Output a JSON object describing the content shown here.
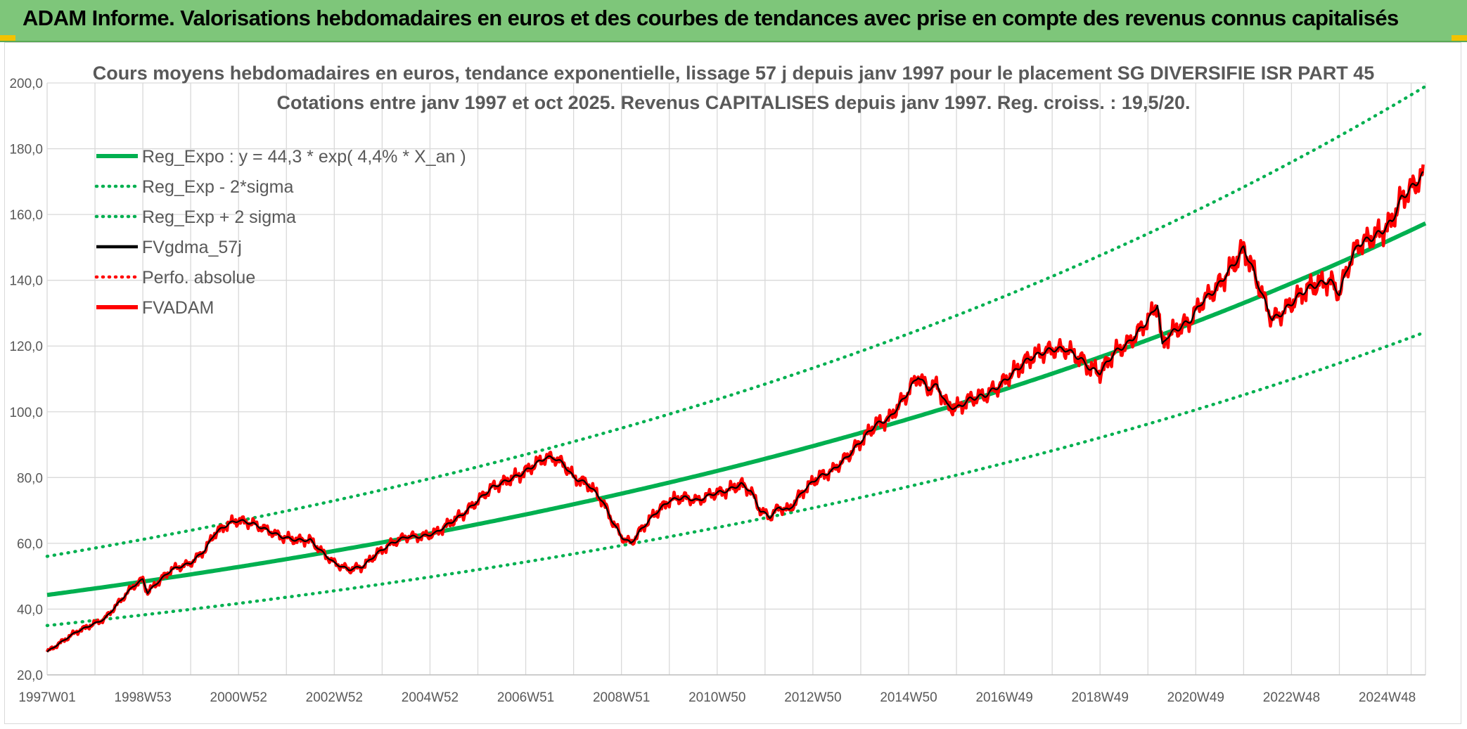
{
  "banner": {
    "title": "ADAM Informe. Valorisations hebdomadaires en euros et des courbes de tendances avec prise en compte des revenus connus capitalisés"
  },
  "colors": {
    "banner_bg": "#7ec67a",
    "trend": "#00b050",
    "smooth": "#000000",
    "price": "#ff0000",
    "grid": "#d9d9d9",
    "text": "#595959"
  },
  "chart_data": {
    "type": "line",
    "title_line1": "Cours moyens hebdomadaires en euros, tendance exponentielle, lissage 57 j depuis janv 1997 pour le placement SG DIVERSIFIE ISR PART 45",
    "title_line2": "Cotations entre janv 1997 et oct 2025. Revenus CAPITALISES depuis janv 1997. Reg. croiss. : 19,5/20.",
    "ylim": [
      20,
      200
    ],
    "y_ticks": [
      "20,0",
      "40,0",
      "60,0",
      "80,0",
      "100,0",
      "120,0",
      "140,0",
      "160,0",
      "180,0",
      "200,0"
    ],
    "x_range_years": [
      1997.0,
      2025.8
    ],
    "x_ticks": [
      {
        "label": "1997W01",
        "year": 1997.0
      },
      {
        "label": "1998W53",
        "year": 1999.0
      },
      {
        "label": "2000W52",
        "year": 2001.0
      },
      {
        "label": "2002W52",
        "year": 2003.0
      },
      {
        "label": "2004W52",
        "year": 2005.0
      },
      {
        "label": "2006W51",
        "year": 2007.0
      },
      {
        "label": "2008W51",
        "year": 2009.0
      },
      {
        "label": "2010W50",
        "year": 2011.0
      },
      {
        "label": "2012W50",
        "year": 2013.0
      },
      {
        "label": "2014W50",
        "year": 2015.0
      },
      {
        "label": "2016W49",
        "year": 2017.0
      },
      {
        "label": "2018W49",
        "year": 2019.0
      },
      {
        "label": "2020W49",
        "year": 2021.0
      },
      {
        "label": "2022W48",
        "year": 2023.0
      },
      {
        "label": "2024W48",
        "year": 2025.0
      }
    ],
    "legend": [
      {
        "name": "Reg_Expo : y = 44,3 * exp( 4,4% *  X_an )",
        "style": "solid-thick",
        "color": "#00b050"
      },
      {
        "name": "Reg_Exp - 2*sigma",
        "style": "dotted",
        "color": "#00b050"
      },
      {
        "name": "Reg_Exp + 2 sigma",
        "style": "dotted",
        "color": "#00b050"
      },
      {
        "name": "FVgdma_57j",
        "style": "solid",
        "color": "#000000"
      },
      {
        "name": "Perfo. absolue",
        "style": "dotted",
        "color": "#ff0000"
      },
      {
        "name": "FVADAM",
        "style": "solid-thick",
        "color": "#ff0000"
      }
    ],
    "regression": {
      "a": 44.3,
      "rate": 0.044,
      "lower_factor": 0.79,
      "upper_factor": 1.265
    },
    "series": [
      {
        "name": "FVADAM",
        "points": [
          [
            1997.0,
            27
          ],
          [
            1997.3,
            30
          ],
          [
            1997.6,
            33
          ],
          [
            1997.9,
            35
          ],
          [
            1998.2,
            37
          ],
          [
            1998.5,
            42
          ],
          [
            1998.8,
            47
          ],
          [
            1999.0,
            49
          ],
          [
            1999.1,
            45
          ],
          [
            1999.3,
            48
          ],
          [
            1999.6,
            52
          ],
          [
            2000.0,
            54
          ],
          [
            2000.3,
            58
          ],
          [
            2000.5,
            63
          ],
          [
            2000.8,
            66
          ],
          [
            2001.0,
            67
          ],
          [
            2001.3,
            66
          ],
          [
            2001.6,
            64
          ],
          [
            2001.9,
            62
          ],
          [
            2002.2,
            61
          ],
          [
            2002.5,
            61
          ],
          [
            2002.7,
            58
          ],
          [
            2003.0,
            54
          ],
          [
            2003.3,
            52
          ],
          [
            2003.6,
            53
          ],
          [
            2003.9,
            57
          ],
          [
            2004.2,
            60
          ],
          [
            2004.5,
            62
          ],
          [
            2004.8,
            62
          ],
          [
            2005.1,
            63
          ],
          [
            2005.4,
            66
          ],
          [
            2005.7,
            69
          ],
          [
            2006.0,
            73
          ],
          [
            2006.3,
            77
          ],
          [
            2006.6,
            79
          ],
          [
            2006.9,
            81
          ],
          [
            2007.2,
            84
          ],
          [
            2007.4,
            86
          ],
          [
            2007.6,
            86
          ],
          [
            2007.8,
            84
          ],
          [
            2008.0,
            80
          ],
          [
            2008.3,
            78
          ],
          [
            2008.6,
            73
          ],
          [
            2008.8,
            67
          ],
          [
            2009.0,
            62
          ],
          [
            2009.2,
            60
          ],
          [
            2009.4,
            64
          ],
          [
            2009.7,
            69
          ],
          [
            2010.0,
            73
          ],
          [
            2010.3,
            74
          ],
          [
            2010.6,
            73
          ],
          [
            2010.9,
            75
          ],
          [
            2011.2,
            76
          ],
          [
            2011.5,
            78
          ],
          [
            2011.7,
            76
          ],
          [
            2011.9,
            70
          ],
          [
            2012.1,
            68
          ],
          [
            2012.3,
            71
          ],
          [
            2012.5,
            70
          ],
          [
            2012.8,
            76
          ],
          [
            2013.1,
            80
          ],
          [
            2013.4,
            82
          ],
          [
            2013.7,
            86
          ],
          [
            2014.0,
            91
          ],
          [
            2014.3,
            96
          ],
          [
            2014.6,
            98
          ],
          [
            2014.9,
            104
          ],
          [
            2015.2,
            111
          ],
          [
            2015.4,
            107
          ],
          [
            2015.6,
            108
          ],
          [
            2015.8,
            102
          ],
          [
            2016.0,
            101
          ],
          [
            2016.3,
            104
          ],
          [
            2016.6,
            105
          ],
          [
            2016.9,
            108
          ],
          [
            2017.2,
            112
          ],
          [
            2017.5,
            116
          ],
          [
            2017.8,
            118
          ],
          [
            2018.0,
            119
          ],
          [
            2018.3,
            119
          ],
          [
            2018.6,
            116
          ],
          [
            2018.8,
            113
          ],
          [
            2019.0,
            112
          ],
          [
            2019.3,
            118
          ],
          [
            2019.6,
            121
          ],
          [
            2019.9,
            126
          ],
          [
            2020.1,
            130
          ],
          [
            2020.2,
            133
          ],
          [
            2020.3,
            120
          ],
          [
            2020.4,
            123
          ],
          [
            2020.6,
            125
          ],
          [
            2020.9,
            128
          ],
          [
            2021.1,
            133
          ],
          [
            2021.4,
            137
          ],
          [
            2021.7,
            143
          ],
          [
            2021.9,
            147
          ],
          [
            2022.0,
            150
          ],
          [
            2022.2,
            143
          ],
          [
            2022.4,
            135
          ],
          [
            2022.6,
            128
          ],
          [
            2022.8,
            130
          ],
          [
            2023.0,
            133
          ],
          [
            2023.2,
            136
          ],
          [
            2023.4,
            138
          ],
          [
            2023.6,
            139
          ],
          [
            2023.8,
            140
          ],
          [
            2023.95,
            137
          ],
          [
            2024.0,
            136
          ],
          [
            2024.2,
            145
          ],
          [
            2024.4,
            151
          ],
          [
            2024.7,
            153
          ],
          [
            2024.9,
            155
          ],
          [
            2025.1,
            158
          ],
          [
            2025.3,
            165
          ],
          [
            2025.5,
            168
          ],
          [
            2025.75,
            172
          ]
        ]
      }
    ]
  }
}
